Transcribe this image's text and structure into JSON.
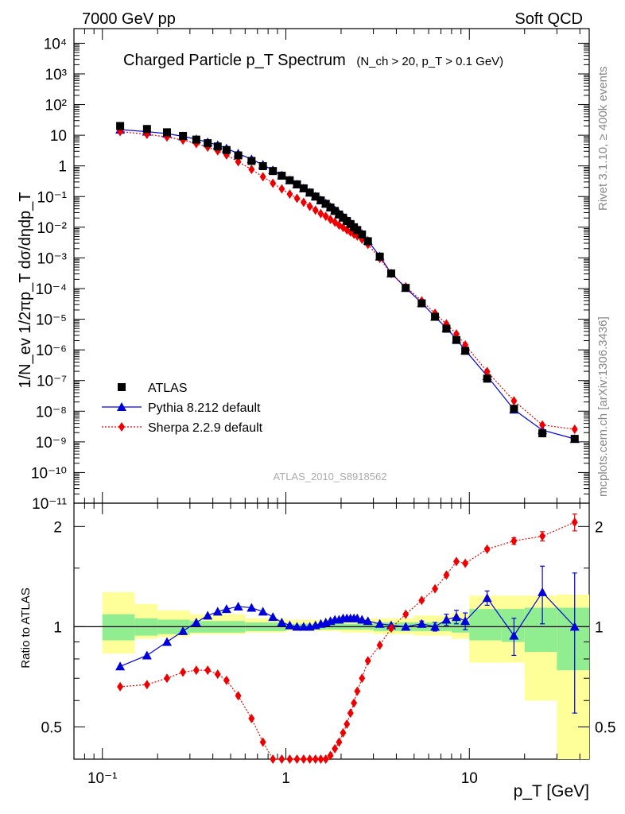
{
  "header": {
    "left": "7000 GeV pp",
    "right": "Soft QCD",
    "side_rivet": "Rivet 3.1.10, ≥ 400k events",
    "side_mcplots": "mcplots.cern.ch [arXiv:1306.3436]",
    "watermark": "ATLAS_2010_S8918562"
  },
  "chart_data": [
    {
      "type": "scatter",
      "title": "Charged Particle p_T Spectrum",
      "subtitle": "(N_ch > 20, p_T > 0.1 GeV)",
      "xlabel": "p_T [GeV]",
      "ylabel": "1/N_ev 1/2πp_T dσ/dηdp_T",
      "xscale": "log",
      "yscale": "log",
      "xlim": [
        0.07,
        45
      ],
      "ylim": [
        1e-11,
        30000.0
      ],
      "legend_position": "bottom-left",
      "x_ticks": [
        "10⁻¹",
        "1",
        "10"
      ],
      "y_ticks": [
        "10⁴",
        "10³",
        "10²",
        "10",
        "1",
        "10⁻¹",
        "10⁻²",
        "10⁻³",
        "10⁻⁴",
        "10⁻⁵",
        "10⁻⁶",
        "10⁻⁷",
        "10⁻⁸",
        "10⁻⁹",
        "10⁻¹⁰",
        "10⁻¹¹"
      ],
      "x": [
        0.125,
        0.175,
        0.225,
        0.275,
        0.325,
        0.375,
        0.425,
        0.475,
        0.55,
        0.65,
        0.75,
        0.85,
        0.95,
        1.05,
        1.15,
        1.25,
        1.35,
        1.45,
        1.55,
        1.65,
        1.75,
        1.85,
        1.95,
        2.05,
        2.15,
        2.25,
        2.35,
        2.45,
        2.6,
        2.8,
        3.25,
        3.75,
        4.5,
        5.5,
        6.5,
        7.5,
        8.5,
        9.5,
        12.5,
        17.5,
        25,
        37.5
      ],
      "series": [
        {
          "name": "ATLAS",
          "color": "#000000",
          "marker": "square",
          "values": [
            20,
            16,
            12.5,
            9.5,
            7.2,
            5.5,
            4.3,
            3.3,
            2.2,
            1.45,
            0.98,
            0.68,
            0.48,
            0.34,
            0.25,
            0.185,
            0.135,
            0.1,
            0.075,
            0.058,
            0.044,
            0.034,
            0.026,
            0.0205,
            0.016,
            0.0127,
            0.01,
            0.0081,
            0.0058,
            0.0035,
            0.0011,
            0.00031,
            0.000105,
            3.3e-05,
            1.2e-05,
            4.9e-06,
            2.1e-06,
            9.3e-07,
            1.15e-07,
            1.2e-08,
            1.9e-09,
            1.25e-09
          ]
        },
        {
          "name": "Pythia 8.212 default",
          "color": "#0000dd",
          "marker": "triangle",
          "line": "solid",
          "ratio_to_atlas": [
            0.76,
            0.82,
            0.9,
            0.97,
            1.03,
            1.08,
            1.11,
            1.13,
            1.15,
            1.14,
            1.11,
            1.07,
            1.03,
            1.01,
            1.0,
            1.0,
            1.0,
            1.01,
            1.02,
            1.03,
            1.04,
            1.05,
            1.05,
            1.06,
            1.06,
            1.06,
            1.06,
            1.06,
            1.05,
            1.04,
            1.02,
            1.01,
            1.0,
            1.02,
            1.0,
            1.05,
            1.07,
            1.04,
            1.22,
            0.94,
            1.27,
            1.0
          ],
          "ratio_errors": [
            0,
            0,
            0,
            0,
            0,
            0,
            0,
            0,
            0,
            0,
            0,
            0,
            0,
            0,
            0,
            0,
            0,
            0,
            0,
            0,
            0,
            0,
            0,
            0,
            0,
            0,
            0,
            0,
            0,
            0,
            0,
            0,
            0,
            0.02,
            0.03,
            0.04,
            0.05,
            0.06,
            0.06,
            0.12,
            0.25,
            0.45
          ]
        },
        {
          "name": "Sherpa 2.2.9 default",
          "color": "#ee0000",
          "marker": "diamond",
          "line": "dotted",
          "ratio_to_atlas": [
            0.66,
            0.67,
            0.7,
            0.73,
            0.74,
            0.74,
            0.72,
            0.69,
            0.62,
            0.53,
            0.45,
            0.4,
            0.37,
            0.355,
            0.35,
            0.35,
            0.355,
            0.36,
            0.37,
            0.39,
            0.41,
            0.43,
            0.45,
            0.48,
            0.51,
            0.55,
            0.59,
            0.64,
            0.7,
            0.79,
            0.88,
            0.99,
            1.09,
            1.2,
            1.3,
            1.43,
            1.57,
            1.55,
            1.71,
            1.81,
            1.87,
            2.06
          ],
          "ratio_errors": [
            0,
            0,
            0,
            0,
            0,
            0,
            0,
            0,
            0,
            0,
            0,
            0,
            0,
            0,
            0,
            0,
            0,
            0,
            0,
            0,
            0,
            0,
            0,
            0,
            0,
            0,
            0,
            0,
            0,
            0,
            0,
            0,
            0,
            0,
            0,
            0,
            0,
            0.01,
            0.02,
            0.04,
            0.06,
            0.12
          ]
        }
      ]
    },
    {
      "type": "line",
      "ylabel": "Ratio to ATLAS",
      "xscale": "log",
      "yscale": "log",
      "xlim": [
        0.07,
        45
      ],
      "ylim": [
        0.4,
        2.35
      ],
      "y_ticks": [
        "0.5",
        "1",
        "2"
      ],
      "reference_line": 1,
      "uncertainty_bands": [
        {
          "x_low": 0.1,
          "x_high": 0.15,
          "inner_low": 0.91,
          "inner_high": 1.09,
          "outer_low": 0.83,
          "outer_high": 1.27
        },
        {
          "x_low": 0.15,
          "x_high": 0.2,
          "inner_low": 0.94,
          "inner_high": 1.06,
          "outer_low": 0.92,
          "outer_high": 1.17
        },
        {
          "x_low": 0.2,
          "x_high": 0.3,
          "inner_low": 0.95,
          "inner_high": 1.05,
          "outer_low": 0.93,
          "outer_high": 1.12
        },
        {
          "x_low": 0.3,
          "x_high": 0.6,
          "inner_low": 0.96,
          "inner_high": 1.04,
          "outer_low": 0.95,
          "outer_high": 1.09
        },
        {
          "x_low": 0.6,
          "x_high": 1.0,
          "inner_low": 0.97,
          "inner_high": 1.03,
          "outer_low": 0.96,
          "outer_high": 1.06
        },
        {
          "x_low": 1.0,
          "x_high": 2.0,
          "inner_low": 0.98,
          "inner_high": 1.02,
          "outer_low": 0.97,
          "outer_high": 1.05
        },
        {
          "x_low": 2.0,
          "x_high": 3.0,
          "inner_low": 0.98,
          "inner_high": 1.02,
          "outer_low": 0.96,
          "outer_high": 1.06
        },
        {
          "x_low": 3.0,
          "x_high": 5.0,
          "inner_low": 0.97,
          "inner_high": 1.03,
          "outer_low": 0.95,
          "outer_high": 1.06
        },
        {
          "x_low": 5.0,
          "x_high": 8.0,
          "inner_low": 0.97,
          "inner_high": 1.03,
          "outer_low": 0.94,
          "outer_high": 1.08
        },
        {
          "x_low": 8.0,
          "x_high": 10.0,
          "inner_low": 0.96,
          "inner_high": 1.04,
          "outer_low": 0.92,
          "outer_high": 1.1
        },
        {
          "x_low": 10.0,
          "x_high": 15.0,
          "inner_low": 0.91,
          "inner_high": 1.13,
          "outer_low": 0.78,
          "outer_high": 1.24
        },
        {
          "x_low": 15.0,
          "x_high": 20.0,
          "inner_low": 0.9,
          "inner_high": 1.13,
          "outer_low": 0.78,
          "outer_high": 1.24
        },
        {
          "x_low": 20.0,
          "x_high": 30.0,
          "inner_low": 0.84,
          "inner_high": 1.14,
          "outer_low": 0.6,
          "outer_high": 1.24
        },
        {
          "x_low": 30.0,
          "x_high": 45.0,
          "inner_low": 0.74,
          "inner_high": 1.14,
          "outer_low": 0.35,
          "outer_high": 1.25
        }
      ],
      "band_colors": {
        "inner": "#90ee90",
        "outer": "#ffff99"
      }
    }
  ]
}
